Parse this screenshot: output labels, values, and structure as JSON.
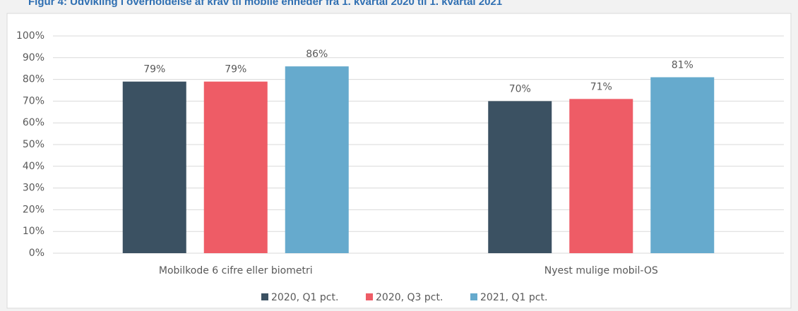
{
  "chart_data": {
    "type": "bar",
    "title": "Figur 4: Udvikling i overholdelse af krav til mobile enheder fra 1. kvartal 2020 til 1. kvartal 2021",
    "categories": [
      "Mobilkode 6 cifre eller biometri",
      "Nyest mulige mobil-OS"
    ],
    "series": [
      {
        "name": "2020, Q1 pct.",
        "color": "#3b5162",
        "values": [
          79,
          70
        ],
        "value_labels": [
          "79%",
          "70%"
        ]
      },
      {
        "name": "2020, Q3 pct.",
        "color": "#ee5c66",
        "values": [
          79,
          71
        ],
        "value_labels": [
          "79%",
          "71%"
        ]
      },
      {
        "name": "2021, Q1 pct.",
        "color": "#66aacd",
        "values": [
          86,
          81
        ],
        "value_labels": [
          "86%",
          "81%"
        ]
      }
    ],
    "ylim": [
      0,
      100
    ],
    "yticks": [
      {
        "value": 0,
        "label": "0%"
      },
      {
        "value": 10,
        "label": "10%"
      },
      {
        "value": 20,
        "label": "20%"
      },
      {
        "value": 30,
        "label": "30%"
      },
      {
        "value": 40,
        "label": "40%"
      },
      {
        "value": 50,
        "label": "50%"
      },
      {
        "value": 60,
        "label": "60%"
      },
      {
        "value": 70,
        "label": "70%"
      },
      {
        "value": 80,
        "label": "80%"
      },
      {
        "value": 90,
        "label": "90%"
      },
      {
        "value": 100,
        "label": "100%"
      }
    ],
    "grid": true,
    "legend": "bottom"
  }
}
